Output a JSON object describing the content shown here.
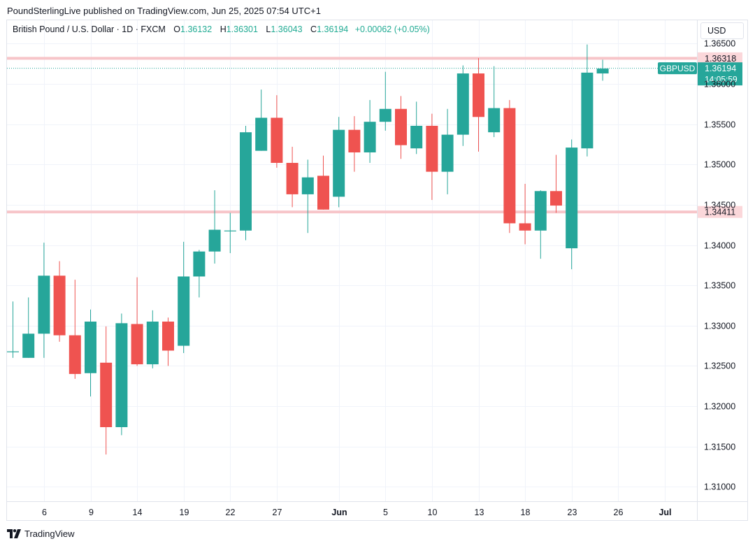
{
  "header": {
    "text": "PoundSterlingLive published on TradingView.com, Jun 25, 2025 07:54 UTC+1"
  },
  "legend": {
    "symbol": "British Pound / U.S. Dollar · 1D · FXCM",
    "open_label": "O",
    "open": "1.36132",
    "high_label": "H",
    "high": "1.36301",
    "low_label": "L",
    "low": "1.36043",
    "close_label": "C",
    "close": "1.36194",
    "change": "+0.00062 (+0.05%)"
  },
  "currency_button": {
    "label": "USD"
  },
  "footer": {
    "brand": "TradingView"
  },
  "colors": {
    "up": "#26a69a",
    "down": "#ef5350",
    "level_line": "#f7c5c9",
    "price_badge": "#26a69a",
    "grid": "#f0f3fa"
  },
  "chart_data": {
    "type": "candlestick",
    "title": "British Pound / U.S. Dollar · 1D · FXCM",
    "symbol": "GBPUSD",
    "ylim": [
      1.3082,
      1.3679
    ],
    "y_ticks": [
      "1.36500",
      "1.36000",
      "1.35500",
      "1.35000",
      "1.34500",
      "1.34000",
      "1.33500",
      "1.33000",
      "1.32500",
      "1.32000",
      "1.31500",
      "1.31000"
    ],
    "x_labels": [
      {
        "label": "6",
        "bar": 2
      },
      {
        "label": "9",
        "bar": 5
      },
      {
        "label": "14",
        "bar": 8
      },
      {
        "label": "19",
        "bar": 11
      },
      {
        "label": "22",
        "bar": 14
      },
      {
        "label": "27",
        "bar": 17
      },
      {
        "label": "Jun",
        "bar": 21
      },
      {
        "label": "5",
        "bar": 24
      },
      {
        "label": "10",
        "bar": 27
      },
      {
        "label": "13",
        "bar": 30
      },
      {
        "label": "18",
        "bar": 33
      },
      {
        "label": "23",
        "bar": 36
      },
      {
        "label": "26",
        "bar": 39
      },
      {
        "label": "Jul",
        "bar": 42
      }
    ],
    "horizontal_levels": [
      {
        "value": 1.36318,
        "label": "1.36318"
      },
      {
        "value": 1.34411,
        "label": "1.34411"
      }
    ],
    "last_price": {
      "value": 1.36194,
      "label": "1.36194",
      "symbol": "GBPUSD",
      "countdown": "14:05:59"
    },
    "candles": [
      {
        "o": 1.3268,
        "h": 1.333,
        "l": 1.326,
        "c": 1.3268
      },
      {
        "o": 1.326,
        "h": 1.3335,
        "l": 1.326,
        "c": 1.329
      },
      {
        "o": 1.329,
        "h": 1.3403,
        "l": 1.326,
        "c": 1.3362
      },
      {
        "o": 1.3362,
        "h": 1.338,
        "l": 1.328,
        "c": 1.3288
      },
      {
        "o": 1.3288,
        "h": 1.3357,
        "l": 1.3234,
        "c": 1.324
      },
      {
        "o": 1.3241,
        "h": 1.332,
        "l": 1.3212,
        "c": 1.3305
      },
      {
        "o": 1.3254,
        "h": 1.3299,
        "l": 1.314,
        "c": 1.3174
      },
      {
        "o": 1.3174,
        "h": 1.3315,
        "l": 1.3164,
        "c": 1.3303
      },
      {
        "o": 1.3302,
        "h": 1.336,
        "l": 1.325,
        "c": 1.3252
      },
      {
        "o": 1.3252,
        "h": 1.3319,
        "l": 1.3247,
        "c": 1.3305
      },
      {
        "o": 1.3305,
        "h": 1.331,
        "l": 1.325,
        "c": 1.3269
      },
      {
        "o": 1.3275,
        "h": 1.3404,
        "l": 1.3266,
        "c": 1.3361
      },
      {
        "o": 1.3361,
        "h": 1.3394,
        "l": 1.3335,
        "c": 1.3392
      },
      {
        "o": 1.3392,
        "h": 1.3468,
        "l": 1.3377,
        "c": 1.3419
      },
      {
        "o": 1.3418,
        "h": 1.344,
        "l": 1.339,
        "c": 1.3418
      },
      {
        "o": 1.3418,
        "h": 1.3548,
        "l": 1.3406,
        "c": 1.354
      },
      {
        "o": 1.3517,
        "h": 1.3593,
        "l": 1.3517,
        "c": 1.3558
      },
      {
        "o": 1.3558,
        "h": 1.3586,
        "l": 1.3496,
        "c": 1.3502
      },
      {
        "o": 1.3502,
        "h": 1.3522,
        "l": 1.3447,
        "c": 1.3463
      },
      {
        "o": 1.3463,
        "h": 1.3506,
        "l": 1.3415,
        "c": 1.3484
      },
      {
        "o": 1.3486,
        "h": 1.3511,
        "l": 1.3444,
        "c": 1.3444
      },
      {
        "o": 1.346,
        "h": 1.3559,
        "l": 1.3447,
        "c": 1.3543
      },
      {
        "o": 1.3543,
        "h": 1.356,
        "l": 1.3491,
        "c": 1.3515
      },
      {
        "o": 1.3515,
        "h": 1.358,
        "l": 1.3502,
        "c": 1.3553
      },
      {
        "o": 1.3553,
        "h": 1.3615,
        "l": 1.3542,
        "c": 1.3569
      },
      {
        "o": 1.3569,
        "h": 1.3585,
        "l": 1.3507,
        "c": 1.3524
      },
      {
        "o": 1.352,
        "h": 1.3578,
        "l": 1.3513,
        "c": 1.3548
      },
      {
        "o": 1.3548,
        "h": 1.3563,
        "l": 1.3456,
        "c": 1.3491
      },
      {
        "o": 1.3491,
        "h": 1.3569,
        "l": 1.3463,
        "c": 1.3537
      },
      {
        "o": 1.3537,
        "h": 1.3623,
        "l": 1.3523,
        "c": 1.3613
      },
      {
        "o": 1.3613,
        "h": 1.3632,
        "l": 1.3516,
        "c": 1.3559
      },
      {
        "o": 1.354,
        "h": 1.3622,
        "l": 1.3534,
        "c": 1.357
      },
      {
        "o": 1.357,
        "h": 1.358,
        "l": 1.3415,
        "c": 1.3427
      },
      {
        "o": 1.3427,
        "h": 1.3476,
        "l": 1.3401,
        "c": 1.3418
      },
      {
        "o": 1.3418,
        "h": 1.3468,
        "l": 1.3383,
        "c": 1.3467
      },
      {
        "o": 1.3467,
        "h": 1.3512,
        "l": 1.344,
        "c": 1.3449
      },
      {
        "o": 1.3396,
        "h": 1.3531,
        "l": 1.337,
        "c": 1.3521
      },
      {
        "o": 1.352,
        "h": 1.3649,
        "l": 1.351,
        "c": 1.3614
      },
      {
        "o": 1.3613,
        "h": 1.363,
        "l": 1.3604,
        "c": 1.3619
      }
    ]
  }
}
